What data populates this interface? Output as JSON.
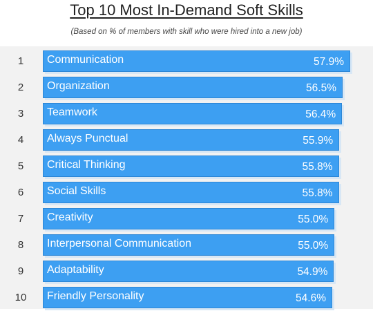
{
  "chart_data": {
    "type": "bar",
    "orientation": "horizontal",
    "title": "Top 10 Most In-Demand Soft Skills",
    "subtitle": "(Based on % of members with skill who were hired into a new job)",
    "categories": [
      "Communication",
      "Organization",
      "Teamwork",
      "Always Punctual",
      "Critical Thinking",
      "Social Skills",
      "Creativity",
      "Interpersonal Communication",
      "Adaptability",
      "Friendly Personality"
    ],
    "ranks": [
      "1",
      "2",
      "3",
      "4",
      "5",
      "6",
      "7",
      "8",
      "9",
      "10"
    ],
    "values": [
      57.9,
      56.5,
      56.4,
      55.9,
      55.8,
      55.8,
      55.0,
      55.0,
      54.9,
      54.6
    ],
    "value_labels": [
      "57.9%",
      "56.5%",
      "56.4%",
      "55.9%",
      "55.8%",
      "55.8%",
      "55.0%",
      "55.0%",
      "54.9%",
      "54.6%"
    ],
    "bar_color": "#3d9ff2",
    "background_color": "#f2f2f2"
  }
}
